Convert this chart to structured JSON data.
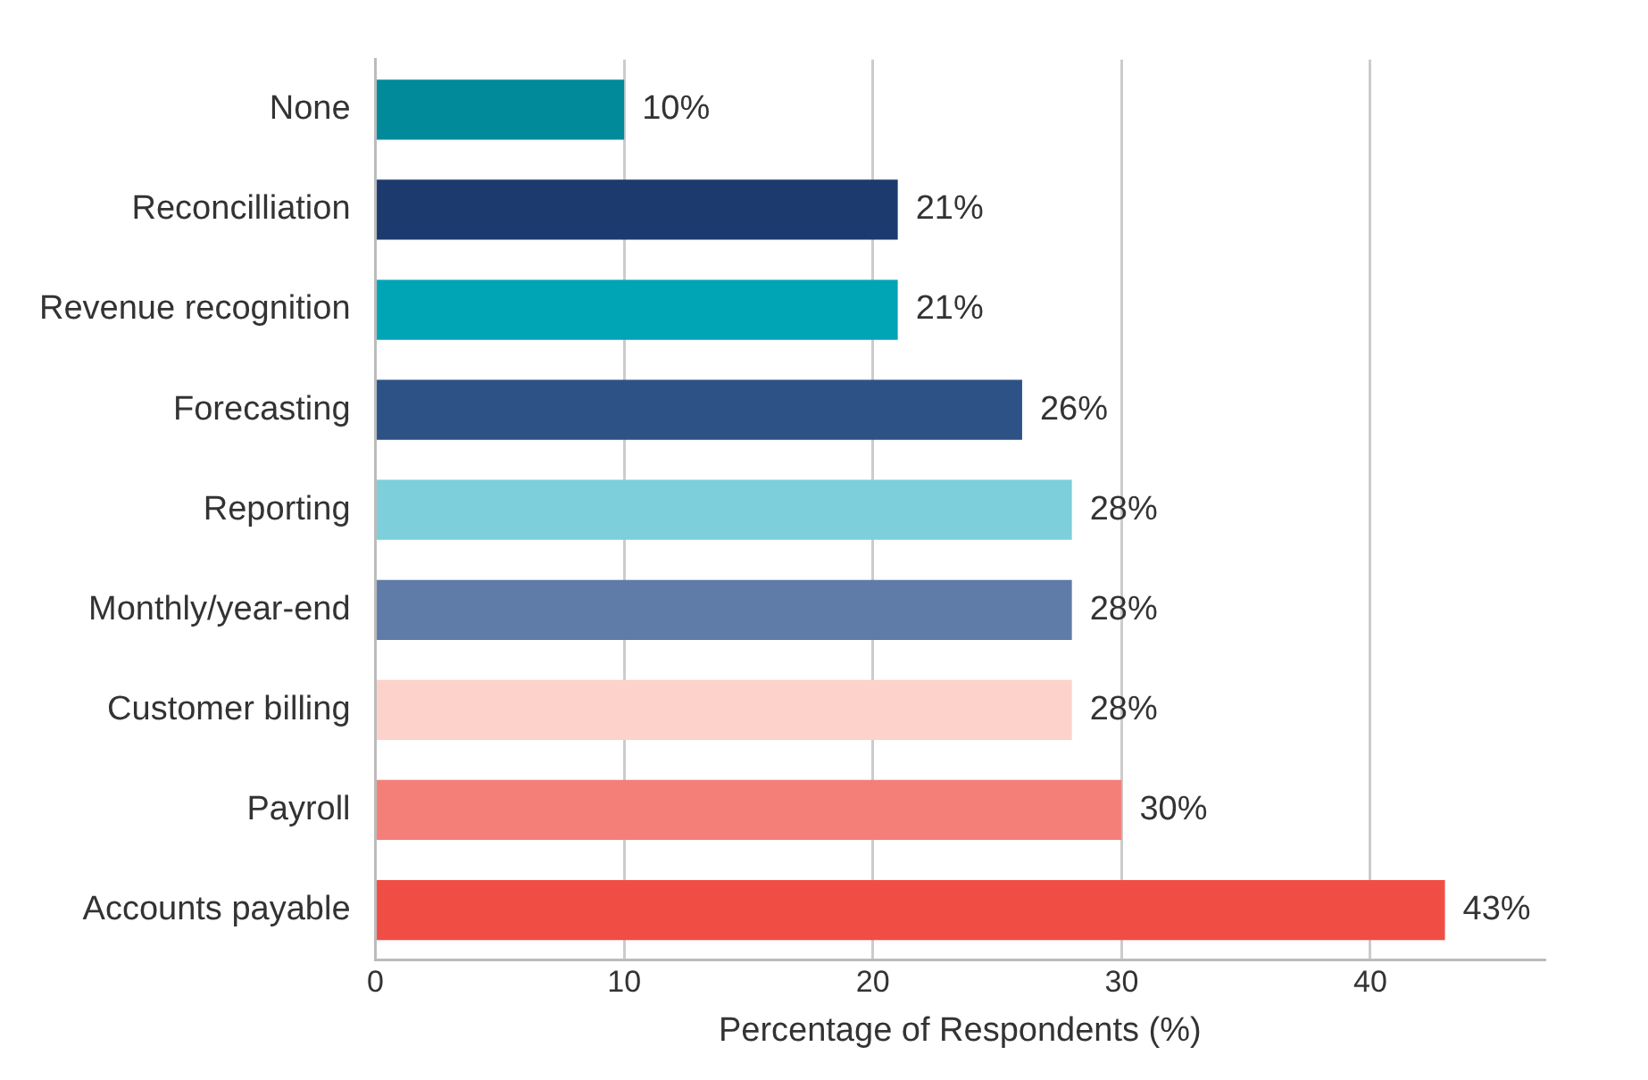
{
  "chart_data": {
    "type": "bar",
    "orientation": "horizontal",
    "xlabel": "Percentage of Respondents (%)",
    "categories": [
      "None",
      "Reconcilliation",
      "Revenue recognition",
      "Forecasting",
      "Reporting",
      "Monthly/year-end",
      "Customer billing",
      "Payroll",
      "Accounts payable"
    ],
    "values": [
      10,
      21,
      21,
      26,
      28,
      28,
      28,
      30,
      43
    ],
    "colors": [
      "#008a9a",
      "#1c3a6e",
      "#00a5b5",
      "#2d5285",
      "#7ccfdb",
      "#5f7ca8",
      "#fdd2ca",
      "#f47f79",
      "#f04e45"
    ],
    "value_labels": [
      "10%",
      "21%",
      "21%",
      "26%",
      "28%",
      "28%",
      "28%",
      "30%",
      "43%"
    ],
    "xlim": [
      0,
      47
    ],
    "xticks": [
      0,
      10,
      20,
      30,
      40
    ],
    "grid": "x"
  }
}
